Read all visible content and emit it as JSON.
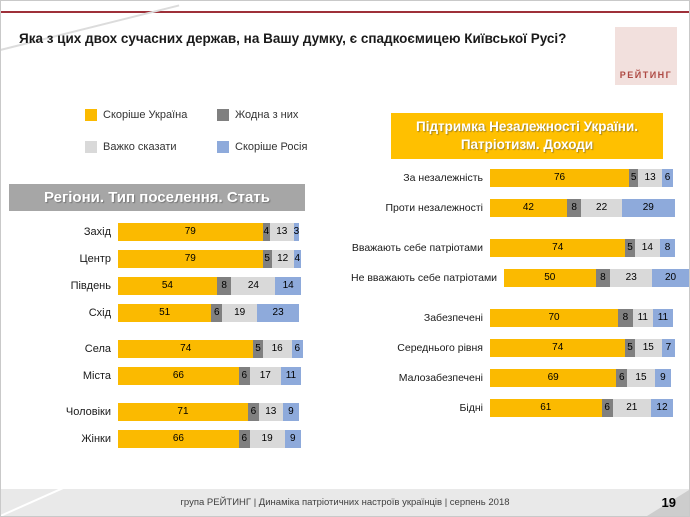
{
  "slide": {
    "title": "Яка з цих двох сучасних держав, на Вашу думку, є спадкоємицею Київської Русі?",
    "logo_text": "РЕЙТИНГ",
    "footer": "група РЕЙТИНГ  | Динаміка патріотичних настроїв українців |  серпень 2018",
    "page_number": "19"
  },
  "panels": {
    "left_header": "Регіони. Тип поселення. Стать",
    "right_header_line1": "Підтримка Незалежності України.",
    "right_header_line2": "Патріотизм. Доходи"
  },
  "legend": {
    "items": [
      {
        "label": "Скоріше Україна",
        "color": "#FBBA00"
      },
      {
        "label": "Жодна з них",
        "color": "#808080"
      },
      {
        "label": "Важко сказати",
        "color": "#D9D9D9"
      },
      {
        "label": "Скоріше Росія",
        "color": "#8EAADB"
      }
    ]
  },
  "colors": {
    "accent_line": "#9E3039",
    "banner_left": "#A6A6A6",
    "banner_right": "#FFC000",
    "footer_bg": "#E9E9E9",
    "logo_bg": "#F2E0DD",
    "logo_text": "#AE4A44"
  },
  "chart_data": [
    {
      "type": "bar",
      "orientation": "horizontal",
      "stacked": true,
      "title": "Регіони. Тип поселення. Стать",
      "series_names": [
        "Скоріше Україна",
        "Жодна з них",
        "Важко сказати",
        "Скоріше Росія"
      ],
      "xlim": [
        0,
        100
      ],
      "groups": [
        {
          "rows": [
            {
              "label": "Захід",
              "values": [
                79,
                4,
                13,
                3
              ]
            },
            {
              "label": "Центр",
              "values": [
                79,
                5,
                12,
                4
              ]
            },
            {
              "label": "Південь",
              "values": [
                54,
                8,
                24,
                14
              ]
            },
            {
              "label": "Схід",
              "values": [
                51,
                6,
                19,
                23
              ]
            }
          ]
        },
        {
          "rows": [
            {
              "label": "Села",
              "values": [
                74,
                5,
                16,
                6
              ]
            },
            {
              "label": "Міста",
              "values": [
                66,
                6,
                17,
                11
              ]
            }
          ]
        },
        {
          "rows": [
            {
              "label": "Чоловіки",
              "values": [
                71,
                6,
                13,
                9
              ]
            },
            {
              "label": "Жінки",
              "values": [
                66,
                6,
                19,
                9
              ]
            }
          ]
        }
      ]
    },
    {
      "type": "bar",
      "orientation": "horizontal",
      "stacked": true,
      "title": "Підтримка Незалежності України. Патріотизм. Доходи",
      "series_names": [
        "Скоріше Україна",
        "Жодна з них",
        "Важко сказати",
        "Скоріше Росія"
      ],
      "xlim": [
        0,
        100
      ],
      "groups": [
        {
          "rows": [
            {
              "label": "За незалежність",
              "values": [
                76,
                5,
                13,
                6
              ]
            },
            {
              "label": "Проти незалежності",
              "values": [
                42,
                8,
                22,
                29
              ]
            }
          ]
        },
        {
          "rows": [
            {
              "label": "Вважають себе патріотами",
              "values": [
                74,
                5,
                14,
                8
              ]
            },
            {
              "label": "Не вважають себе патріотами",
              "values": [
                50,
                8,
                23,
                20
              ]
            }
          ]
        },
        {
          "rows": [
            {
              "label": "Забезпечені",
              "values": [
                70,
                8,
                11,
                11
              ]
            },
            {
              "label": "Середнього рівня",
              "values": [
                74,
                5,
                15,
                7
              ]
            },
            {
              "label": "Малозабезпечені",
              "values": [
                69,
                6,
                15,
                9
              ]
            },
            {
              "label": "Бідні",
              "values": [
                61,
                6,
                21,
                12
              ]
            }
          ]
        }
      ]
    }
  ]
}
